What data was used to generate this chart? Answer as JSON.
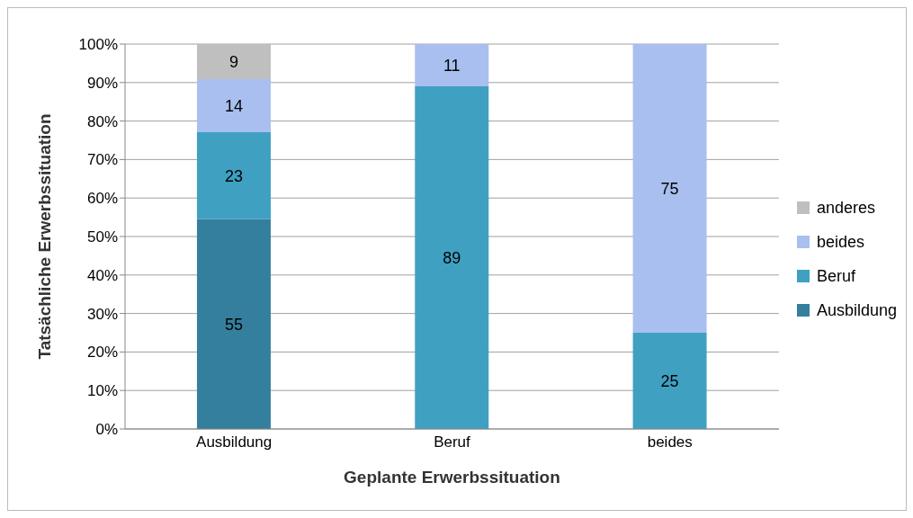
{
  "chart_data": {
    "type": "bar",
    "stacked": true,
    "xlabel": "Geplante Erwerbssituation",
    "ylabel": "Tatsächliche Erwerbssituation",
    "categories": [
      "Ausbildung",
      "Beruf",
      "beides"
    ],
    "series": [
      {
        "name": "Ausbildung",
        "color": "#357f9e",
        "values": [
          54.5,
          null,
          null
        ],
        "value_labels": [
          "55",
          null,
          null
        ]
      },
      {
        "name": "Beruf",
        "color": "#3fa0c2",
        "values": [
          22.6,
          89,
          25
        ],
        "value_labels": [
          "23",
          "89",
          "25"
        ]
      },
      {
        "name": "beides",
        "color": "#a8bff0",
        "values": [
          13.8,
          11,
          75
        ],
        "value_labels": [
          "14",
          "11",
          "75"
        ]
      },
      {
        "name": "anderes",
        "color": "#bfbfbf",
        "values": [
          9.1,
          null,
          null
        ],
        "value_labels": [
          "9",
          null,
          null
        ]
      }
    ],
    "ylim": [
      0,
      100
    ],
    "yticks": [
      {
        "value": 0,
        "label": "0%"
      },
      {
        "value": 10,
        "label": "10%"
      },
      {
        "value": 20,
        "label": "20%"
      },
      {
        "value": 30,
        "label": "30%"
      },
      {
        "value": 40,
        "label": "40%"
      },
      {
        "value": 50,
        "label": "50%"
      },
      {
        "value": 60,
        "label": "60%"
      },
      {
        "value": 70,
        "label": "70%"
      },
      {
        "value": 80,
        "label": "80%"
      },
      {
        "value": 90,
        "label": "90%"
      },
      {
        "value": 100,
        "label": "100%"
      }
    ],
    "grid": "y",
    "legend": "right"
  }
}
